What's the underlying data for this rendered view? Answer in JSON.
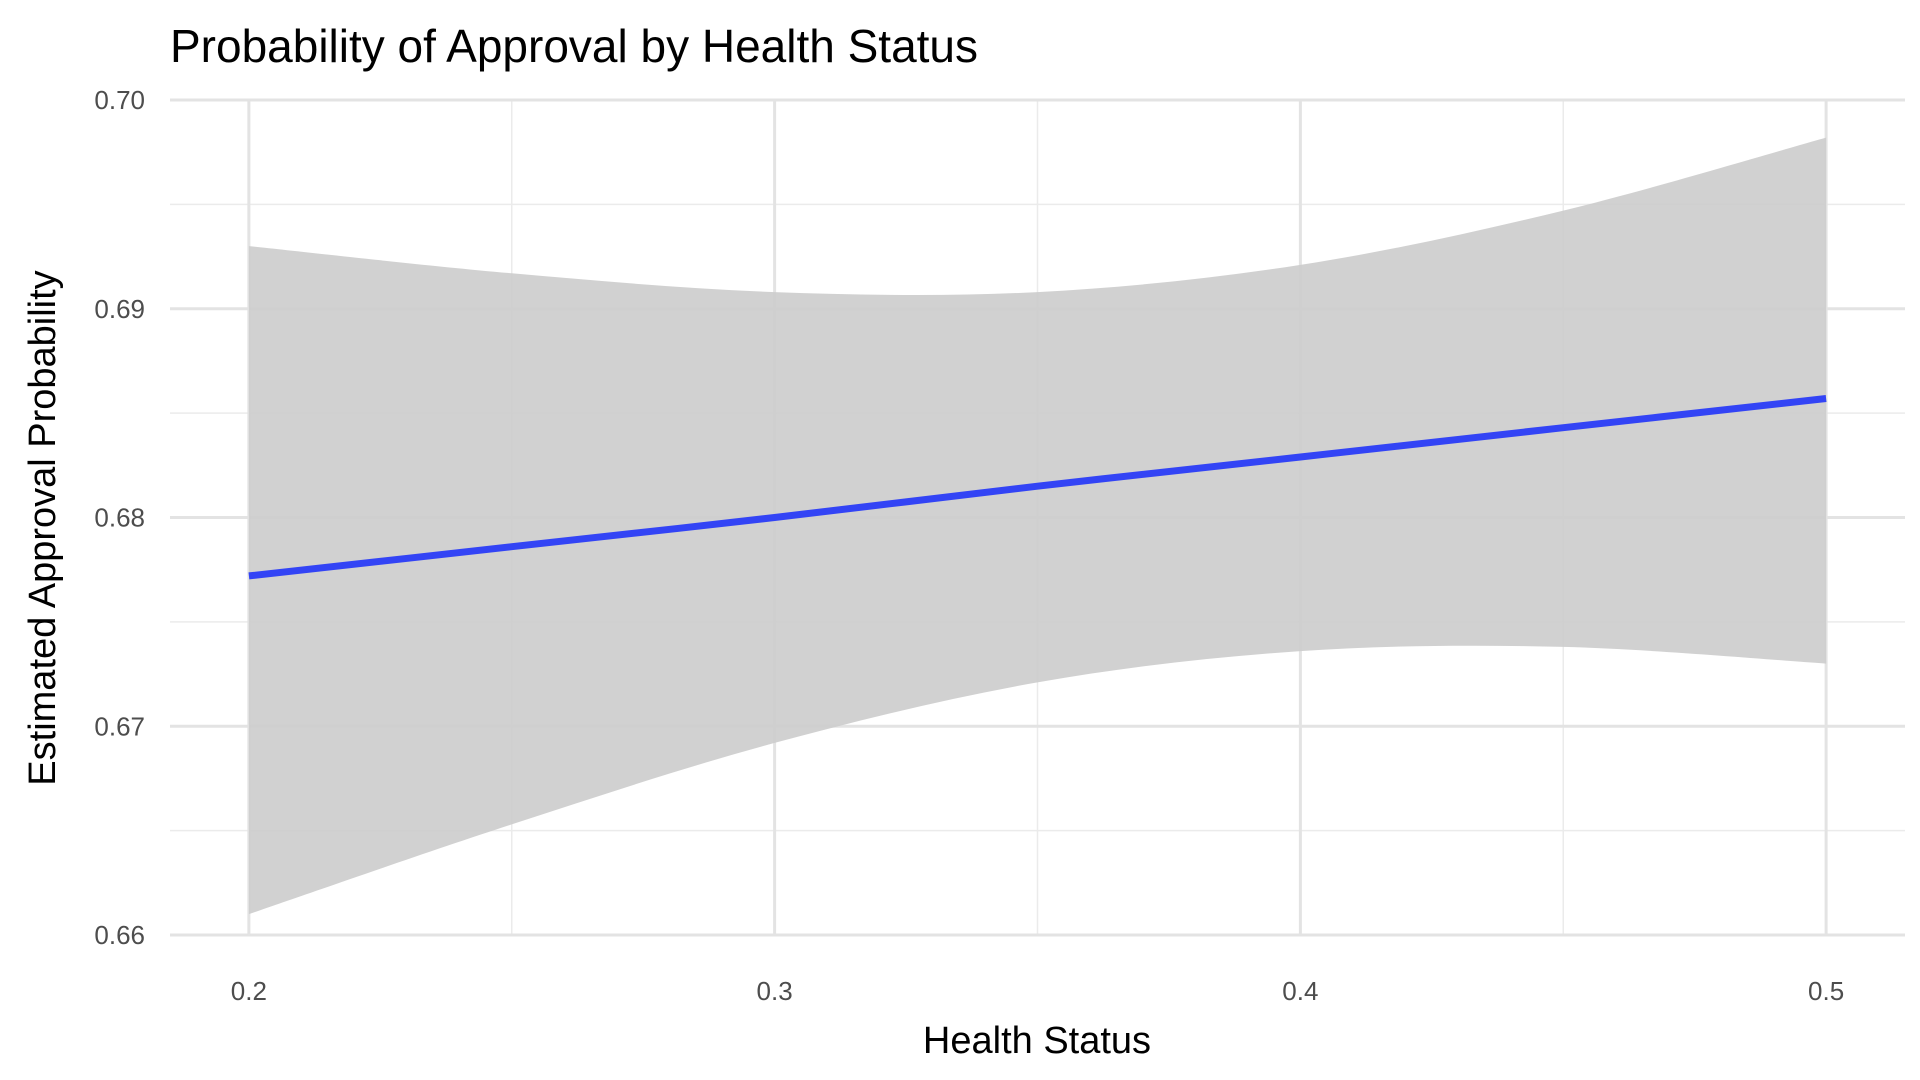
{
  "chart_data": {
    "type": "line",
    "title": "Probability of Approval by Health Status",
    "xlabel": "Health Status",
    "ylabel": "Estimated Approval Probability",
    "xlim": [
      0.185,
      0.515
    ],
    "ylim": [
      0.66,
      0.7
    ],
    "x_ticks": [
      0.2,
      0.3,
      0.4,
      0.5
    ],
    "x_tick_labels": [
      "0.2",
      "0.3",
      "0.4",
      "0.5"
    ],
    "x_minor_ticks": [
      0.25,
      0.35,
      0.45
    ],
    "y_ticks": [
      0.66,
      0.67,
      0.68,
      0.69,
      0.7
    ],
    "y_tick_labels": [
      "0.66",
      "0.67",
      "0.68",
      "0.69",
      "0.70"
    ],
    "y_minor_ticks": [
      0.665,
      0.675,
      0.685,
      0.695
    ],
    "grid": true,
    "legend": "none",
    "line_color": "#3344f5",
    "ribbon_color": "#cccccc",
    "series": [
      {
        "x": [
          0.2,
          0.25,
          0.3,
          0.35,
          0.4,
          0.45,
          0.5
        ],
        "y": [
          0.6772,
          0.6786,
          0.68,
          0.6815,
          0.6829,
          0.6843,
          0.6857
        ],
        "lower": [
          0.661,
          0.6653,
          0.6692,
          0.6721,
          0.6736,
          0.6738,
          0.673
        ],
        "upper": [
          0.693,
          0.6917,
          0.6908,
          0.6908,
          0.6921,
          0.6947,
          0.6982
        ]
      }
    ]
  }
}
